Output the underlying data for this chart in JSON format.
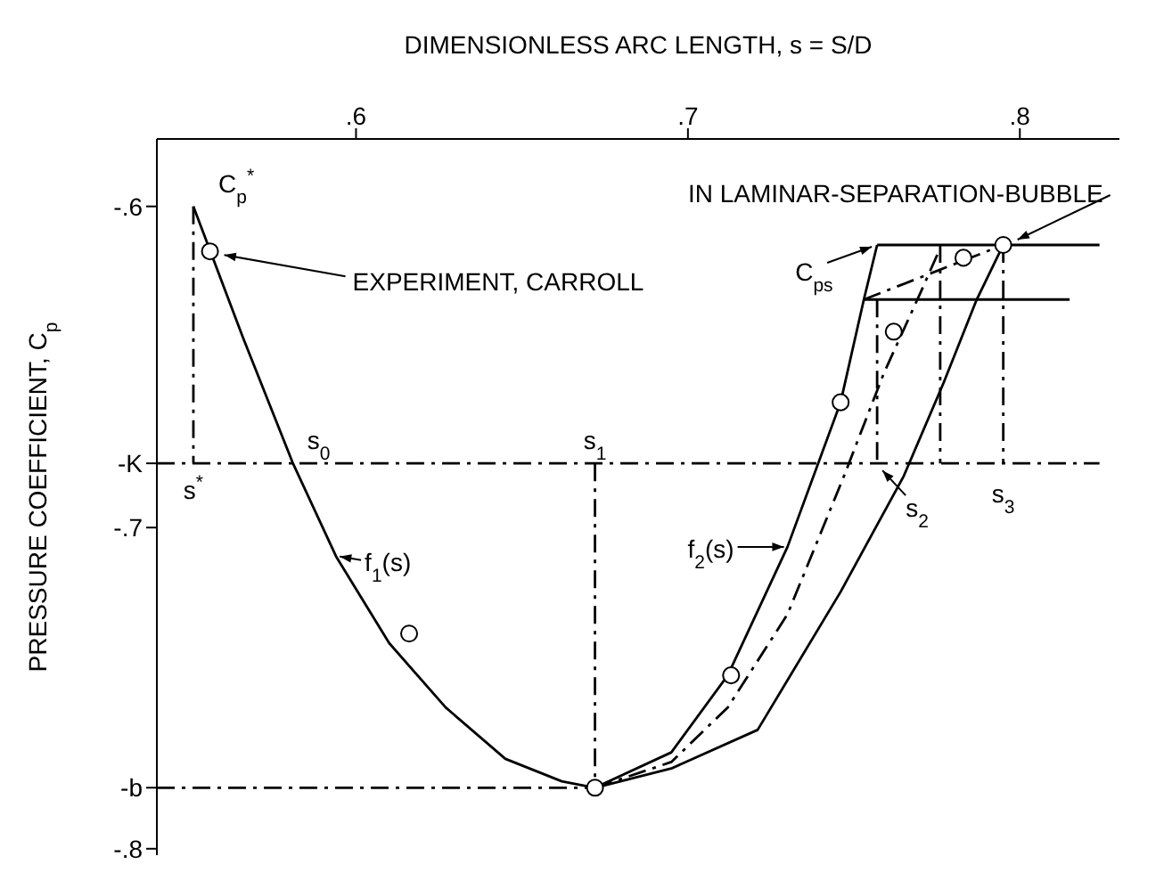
{
  "chart_data": {
    "type": "line",
    "xlabel": "DIMENSIONLESS ARC LENGTH, s = S/D",
    "ylabel": "PRESSURE COEFFICIENT, C$_{p}$",
    "xlim": [
      0.54,
      0.83
    ],
    "xticks": [
      {
        "value": 0.6,
        "label": ".6"
      },
      {
        "value": 0.7,
        "label": ".7"
      },
      {
        "value": 0.8,
        "label": ".8"
      }
    ],
    "ylim": [
      -0.802,
      -0.579
    ],
    "yticks": [
      {
        "value": -0.6,
        "label": "-.6"
      },
      {
        "value": -0.68,
        "label": "-K"
      },
      {
        "value": -0.7,
        "label": "-.7"
      },
      {
        "value": -0.781,
        "label": "-b"
      },
      {
        "value": -0.8,
        "label": "-.8"
      }
    ],
    "series": [
      {
        "color": "#000000",
        "line_style": "solid",
        "marker": "none",
        "x": [
          0.551,
          0.566,
          0.581,
          0.594,
          0.61,
          0.627,
          0.645,
          0.662,
          0.672
        ],
        "values": [
          -0.6,
          -0.641,
          -0.68,
          -0.709,
          -0.736,
          -0.756,
          -0.772,
          -0.779,
          -0.781
        ]
      },
      {
        "color": "#000000",
        "line_style": "solid",
        "marker": "none",
        "x": [
          0.672,
          0.695,
          0.712,
          0.73,
          0.746,
          0.753,
          0.757
        ],
        "values": [
          -0.781,
          -0.77,
          -0.746,
          -0.706,
          -0.661,
          -0.629,
          -0.612
        ]
      },
      {
        "color": "#000000",
        "line_style": "solid",
        "marker": "none",
        "x": [
          0.672,
          0.695,
          0.721,
          0.746,
          0.765,
          0.777,
          0.787,
          0.795
        ],
        "values": [
          -0.781,
          -0.775,
          -0.763,
          -0.72,
          -0.684,
          -0.655,
          -0.629,
          -0.612
        ]
      },
      {
        "color": "#000000",
        "line_style": "dashed",
        "marker": "none",
        "x": [
          0.672,
          0.695,
          0.712,
          0.73,
          0.747,
          0.759,
          0.77,
          0.776
        ],
        "values": [
          -0.781,
          -0.773,
          -0.756,
          -0.727,
          -0.684,
          -0.652,
          -0.627,
          -0.613
        ]
      },
      {
        "color": "#000000",
        "line_style": "dashed",
        "marker": "none",
        "x": [
          0.753,
          0.795
        ],
        "values": [
          -0.629,
          -0.612
        ]
      },
      {
        "color": "#000000",
        "line_style": "solid",
        "marker": "none",
        "x": [
          0.757,
          0.824
        ],
        "values": [
          -0.612,
          -0.612
        ]
      },
      {
        "color": "#000000",
        "line_style": "solid",
        "marker": "none",
        "x": [
          0.753,
          0.815
        ],
        "values": [
          -0.629,
          -0.629
        ]
      },
      {
        "color": "#000000",
        "line_style": "dashed",
        "marker": "none",
        "x": [
          0.54,
          0.824
        ],
        "values": [
          -0.68,
          -0.68
        ]
      },
      {
        "color": "#000000",
        "line_style": "dashed",
        "marker": "none",
        "x": [
          0.54,
          0.672
        ],
        "values": [
          -0.781,
          -0.781
        ]
      },
      {
        "color": "#000000",
        "line_style": "dashed",
        "marker": "none",
        "x": [
          0.551,
          0.551
        ],
        "values": [
          -0.6,
          -0.68
        ]
      },
      {
        "color": "#000000",
        "line_style": "dashed",
        "marker": "none",
        "x": [
          0.672,
          0.672
        ],
        "values": [
          -0.68,
          -0.781
        ]
      },
      {
        "color": "#000000",
        "line_style": "dashed",
        "marker": "none",
        "x": [
          0.757,
          0.757
        ],
        "values": [
          -0.629,
          -0.68
        ]
      },
      {
        "color": "#000000",
        "line_style": "dashed",
        "marker": "none",
        "x": [
          0.776,
          0.776
        ],
        "values": [
          -0.612,
          -0.68
        ]
      },
      {
        "color": "#000000",
        "line_style": "dashed",
        "marker": "none",
        "x": [
          0.795,
          0.795
        ],
        "values": [
          -0.612,
          -0.68
        ]
      },
      {
        "type": "scatter",
        "color": "#000000",
        "marker": "circle",
        "x": [
          0.556,
          0.616,
          0.672,
          0.713,
          0.746,
          0.762,
          0.783,
          0.795
        ],
        "values": [
          -0.614,
          -0.733,
          -0.781,
          -0.746,
          -0.661,
          -0.639,
          -0.616,
          -0.612
        ]
      }
    ],
    "annotations": [
      {
        "text": "C$_{p}$$^{*}$",
        "x": 0.551,
        "y": -0.6
      },
      {
        "text": "EXPERIMENT, CARROLL",
        "x": 0.556,
        "y": -0.614
      },
      {
        "text": "IN LAMINAR-SEPARATION-BUBBLE",
        "x": 0.795,
        "y": -0.612
      },
      {
        "text": "s$^{*}$",
        "x": 0.551,
        "y": -0.68
      },
      {
        "text": "s$_{0}$",
        "x": 0.581,
        "y": -0.68
      },
      {
        "text": "s$_{1}$",
        "x": 0.672,
        "y": -0.68
      },
      {
        "text": "s$_{2}$",
        "x": 0.757,
        "y": -0.68
      },
      {
        "text": "s$_{3}$",
        "x": 0.795,
        "y": -0.68
      },
      {
        "text": "f$_{1}$(s)",
        "x": 0.594,
        "y": -0.709
      },
      {
        "text": "f$_{2}$(s)",
        "x": 0.73,
        "y": -0.706
      },
      {
        "text": "C$_{ps}$",
        "x": 0.757,
        "y": -0.612
      }
    ]
  }
}
